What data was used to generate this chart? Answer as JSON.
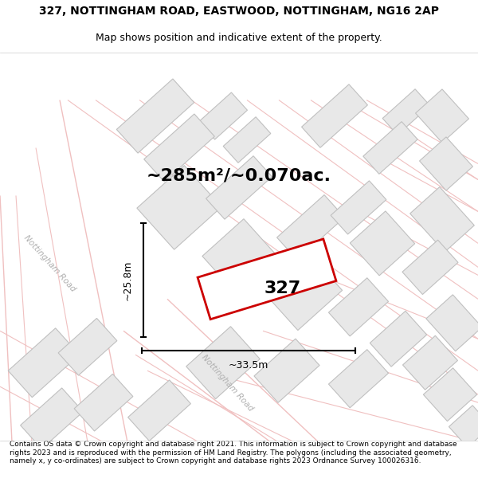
{
  "title": "327, NOTTINGHAM ROAD, EASTWOOD, NOTTINGHAM, NG16 2AP",
  "subtitle": "Map shows position and indicative extent of the property.",
  "area_label": "~285m²/~0.070ac.",
  "property_number": "327",
  "dim_vertical": "~25.8m",
  "dim_horizontal": "~33.5m",
  "road_label_1": "Nottingham Road",
  "road_label_2": "Nottingham Road",
  "footer": "Contains OS data © Crown copyright and database right 2021. This information is subject to Crown copyright and database rights 2023 and is reproduced with the permission of HM Land Registry. The polygons (including the associated geometry, namely x, y co-ordinates) are subject to Crown copyright and database rights 2023 Ordnance Survey 100026316.",
  "map_bg": "#ffffff",
  "building_fill": "#e8e8e8",
  "building_edge": "#c0c0c0",
  "road_line_color": "#f0c0c0",
  "road_fill_color": "#f8f0f0",
  "property_edge": "#cc0000",
  "dim_line_color": "#000000",
  "road_label_color": "#b0b0b0",
  "title_fontsize": 10,
  "subtitle_fontsize": 9,
  "area_fontsize": 16,
  "property_num_fontsize": 16,
  "dim_fontsize": 9,
  "footer_fontsize": 6.5
}
